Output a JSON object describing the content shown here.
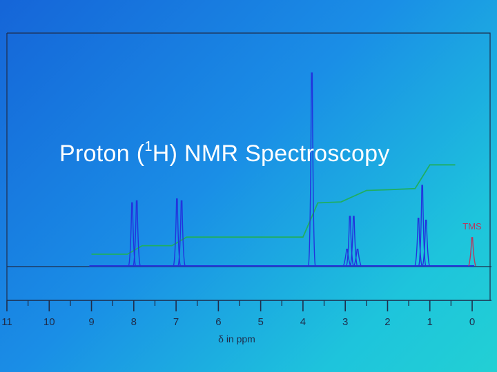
{
  "slide": {
    "title_before": "Proton (",
    "title_sup": "1",
    "title_after": "H) NMR Spectroscopy"
  },
  "colors": {
    "frame": "#1f2c4a",
    "spectrum": "#2233dd",
    "integral": "#1fae62",
    "tms": "#b8385f",
    "tick_text": "#1f2c4a"
  },
  "chart_data": {
    "type": "line",
    "xlabel": "δ in ppm",
    "x_reversed": true,
    "xlim": [
      11,
      0
    ],
    "ticks": [
      "11",
      "10",
      "9",
      "8",
      "7",
      "6",
      "5",
      "4",
      "3",
      "2",
      "1",
      "0"
    ],
    "tick_values": [
      11,
      10,
      9,
      8,
      7,
      6,
      5,
      4,
      3,
      2,
      1,
      0
    ],
    "grid": false,
    "series": [
      {
        "kind": "spectrum",
        "peaks": [
          {
            "ppm": 8.04,
            "intensity": 0.33
          },
          {
            "ppm": 7.93,
            "intensity": 0.34
          },
          {
            "ppm": 6.98,
            "intensity": 0.35
          },
          {
            "ppm": 6.87,
            "intensity": 0.34
          },
          {
            "ppm": 3.79,
            "intensity": 1.0
          },
          {
            "ppm": 2.96,
            "intensity": 0.09
          },
          {
            "ppm": 2.89,
            "intensity": 0.26
          },
          {
            "ppm": 2.8,
            "intensity": 0.26
          },
          {
            "ppm": 2.71,
            "intensity": 0.09
          },
          {
            "ppm": 1.27,
            "intensity": 0.25
          },
          {
            "ppm": 1.18,
            "intensity": 0.42
          },
          {
            "ppm": 1.09,
            "intensity": 0.24
          },
          {
            "ppm": 0.0,
            "intensity": 0.15,
            "label": "TMS"
          }
        ]
      },
      {
        "kind": "integral",
        "points": [
          [
            9.0,
            0.0
          ],
          [
            8.15,
            0.0
          ],
          [
            7.8,
            0.09
          ],
          [
            7.1,
            0.09
          ],
          [
            6.75,
            0.18
          ],
          [
            4.0,
            0.18
          ],
          [
            3.65,
            0.54
          ],
          [
            3.1,
            0.55
          ],
          [
            2.5,
            0.67
          ],
          [
            1.9,
            0.68
          ],
          [
            1.35,
            0.69
          ],
          [
            1.0,
            0.94
          ],
          [
            0.4,
            0.94
          ]
        ]
      }
    ]
  }
}
